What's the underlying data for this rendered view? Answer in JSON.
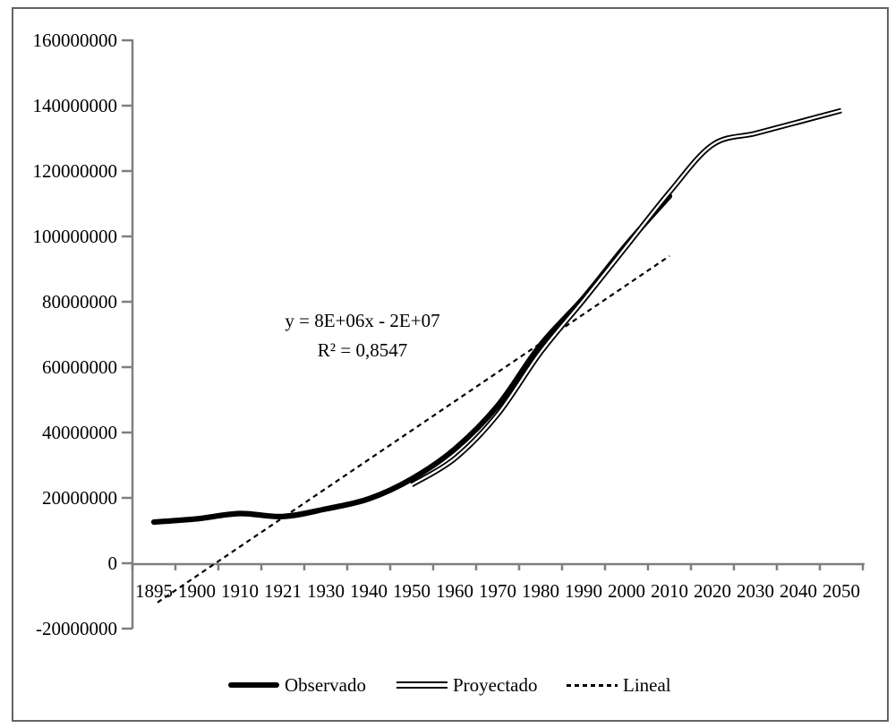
{
  "colors": {
    "background": "#ffffff",
    "axis": "#7f7f7f",
    "frame_border": "#636363",
    "series_line": "#000000",
    "text": "#000000"
  },
  "chart_data": {
    "type": "line",
    "title": "",
    "xlabel": "",
    "ylabel": "",
    "grid": "off",
    "legend_position": "bottom",
    "ylim": [
      -20000000,
      160000000
    ],
    "y_ticks": [
      160000000,
      140000000,
      120000000,
      100000000,
      80000000,
      60000000,
      40000000,
      20000000,
      0,
      -20000000
    ],
    "categories": [
      "1895",
      "1900",
      "1910",
      "1921",
      "1930",
      "1940",
      "1950",
      "1960",
      "1970",
      "1980",
      "1990",
      "2000",
      "2010",
      "2020",
      "2030",
      "2040",
      "2050"
    ],
    "annotation": {
      "equation": "y = 8E+06x - 2E+07",
      "r_squared": "R² = 0,8547"
    },
    "series": [
      {
        "name": "Observado",
        "type": "smooth-line",
        "line_style": "thick-solid",
        "start_category_index": 0,
        "values": [
          12600000,
          13600000,
          15200000,
          14300000,
          16600000,
          19700000,
          25800000,
          34900000,
          48200000,
          66800000,
          81200000,
          97500000,
          112300000
        ]
      },
      {
        "name": "Proyectado",
        "type": "smooth-line",
        "line_style": "double-line",
        "start_category_index": 6,
        "values": [
          24000000,
          32000000,
          45500000,
          64500000,
          80500000,
          97000000,
          113500000,
          128000000,
          131500000,
          135000000,
          138500000
        ]
      },
      {
        "name": "Lineal",
        "type": "trendline",
        "line_style": "dashed",
        "start": {
          "year": "1895",
          "value": -12000000
        },
        "end": {
          "year": "2010",
          "value": 94000000
        }
      }
    ]
  }
}
